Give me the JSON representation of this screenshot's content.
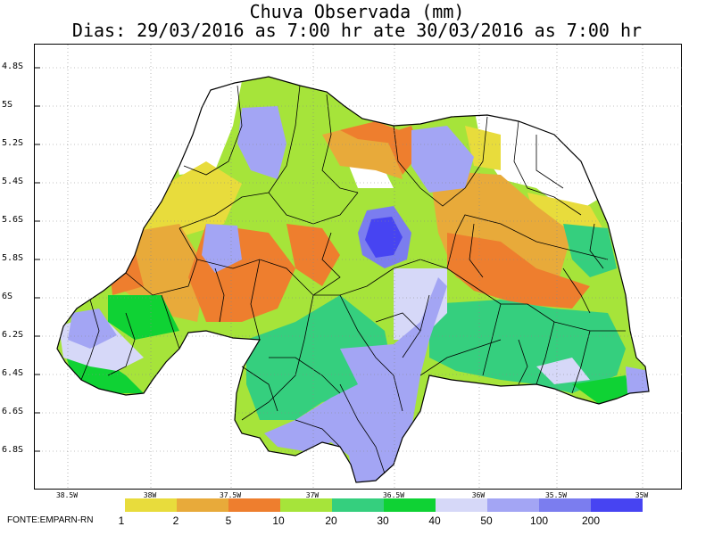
{
  "title_line1": "Chuva Observada (mm)",
  "title_line2": "Dias: 29/03/2016 as 7:00 hr ate 30/03/2016 as 7:00 hr",
  "y_axis_labels": [
    "4.8S",
    "5S",
    "5.2S",
    "5.4S",
    "5.6S",
    "5.8S",
    "6S",
    "6.2S",
    "6.4S",
    "6.6S",
    "6.8S"
  ],
  "x_axis_labels": [
    "38.5W",
    "38W",
    "37.5W",
    "37W",
    "36.5W",
    "36W",
    "35.5W",
    "35W"
  ],
  "legend": {
    "thresholds": [
      "1",
      "2",
      "5",
      "10",
      "20",
      "30",
      "40",
      "50",
      "100",
      "200"
    ],
    "colors": [
      "#e8dc3c",
      "#e8aa3a",
      "#ee7e2e",
      "#a6e43a",
      "#35cf7e",
      "#0fd234",
      "#d6d8f8",
      "#a3a5f4",
      "#7b7def",
      "#4744f2"
    ]
  },
  "source": "FONTE:EMPARN-RN"
}
